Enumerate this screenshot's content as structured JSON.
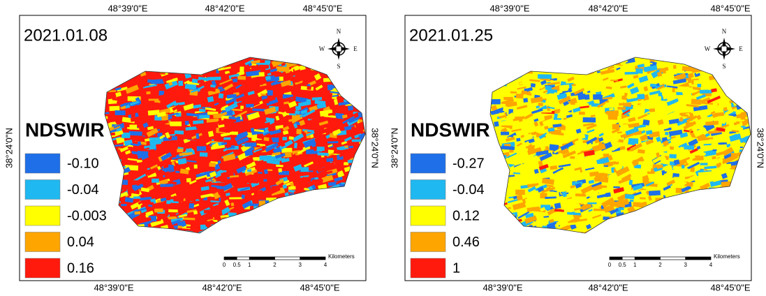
{
  "panels": [
    {
      "date": "2021.01.08",
      "legend": {
        "title": "NDSWIR",
        "items": [
          {
            "label": "-0.10",
            "color": "#1f6fe8"
          },
          {
            "label": "-0.04",
            "color": "#20b8f0"
          },
          {
            "label": "-0.003",
            "color": "#ffff00"
          },
          {
            "label": "0.04",
            "color": "#ffa500"
          },
          {
            "label": "0.16",
            "color": "#ff1a0d"
          }
        ]
      },
      "top_ticks": [
        "48°39'0\"E",
        "48°42'0\"E",
        "48°45'0\"E"
      ],
      "bottom_ticks": [
        "48°39'0\"E",
        "48°42'0\"E",
        "48°45'0\"E"
      ],
      "left_tick": "38°24'0\"N",
      "right_tick": "38°24'0\"N",
      "scale": {
        "unit": "Kilometers",
        "ticks": [
          "0",
          "0.5",
          "1",
          "2",
          "3",
          "4"
        ]
      },
      "compass": {
        "n": "N",
        "s": "S",
        "e": "E",
        "w": "W"
      }
    },
    {
      "date": "2021.01.25",
      "legend": {
        "title": "NDSWIR",
        "items": [
          {
            "label": "-0.27",
            "color": "#1f6fe8"
          },
          {
            "label": "-0.04",
            "color": "#20b8f0"
          },
          {
            "label": "0.12",
            "color": "#ffff00"
          },
          {
            "label": "0.46",
            "color": "#ffa500"
          },
          {
            "label": "1",
            "color": "#ff1a0d"
          }
        ]
      },
      "top_ticks": [
        "48°39'0\"E",
        "48°42'0\"E",
        "48°45'0\"E"
      ],
      "bottom_ticks": [
        "48°39'0\"E",
        "48°42'0\"E",
        "48°45'0\"E"
      ],
      "left_tick": "38°24'0\"N",
      "right_tick": "38°24'0\"N",
      "scale": {
        "unit": "Kilometers",
        "ticks": [
          "0",
          "0.5",
          "1",
          "2",
          "3",
          "4"
        ]
      },
      "compass": {
        "n": "N",
        "s": "S",
        "e": "E",
        "w": "W"
      }
    }
  ]
}
